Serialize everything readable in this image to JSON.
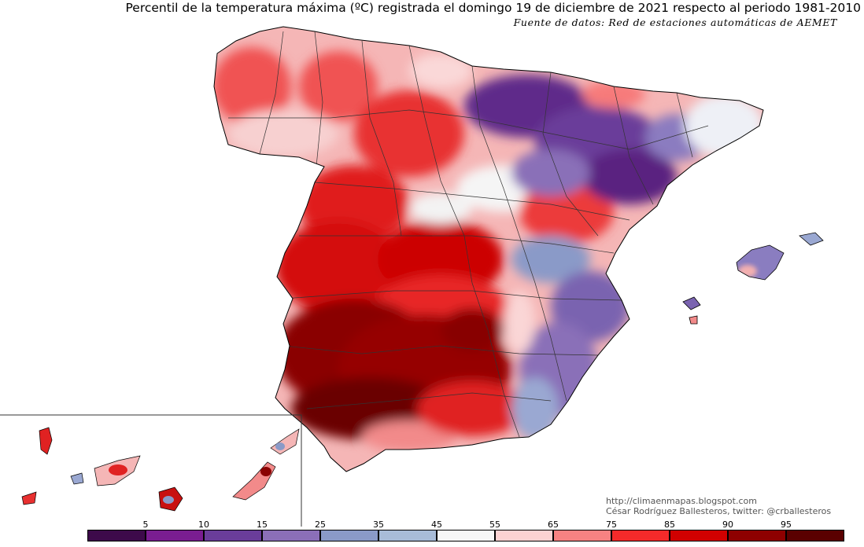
{
  "title": "Percentil de la temperatura máxima (ºC) registrada el domingo 19 de diciembre de 2021 respecto al periodo 1981-2010",
  "subtitle": "Fuente de datos: Red de estaciones automáticas de AEMET",
  "credits": {
    "url": "http://climaenmapas.blogspot.com",
    "author": "César Rodríguez Ballesteros, twitter: @crballesteros"
  },
  "legend": {
    "colors": [
      "#3d0a4a",
      "#7a1d91",
      "#6a3d9a",
      "#8b6fb8",
      "#8a9ac8",
      "#a8bcd8",
      "#f7f7f7",
      "#fcd2d2",
      "#f78282",
      "#f52a2a",
      "#d10000",
      "#8e0000",
      "#5a0000"
    ],
    "labels": [
      "5",
      "10",
      "15",
      "25",
      "35",
      "45",
      "55",
      "65",
      "75",
      "85",
      "90",
      "95"
    ]
  },
  "regions": {
    "cold_color": "#6a3d9a",
    "warm_color": "#8e0000"
  }
}
